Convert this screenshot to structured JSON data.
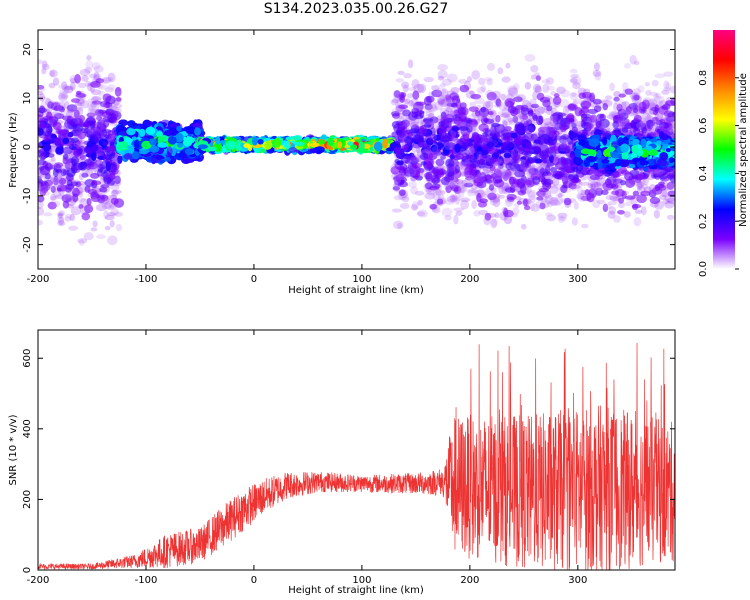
{
  "title": "S134.2023.035.00.26.G27",
  "chart_data": [
    {
      "type": "heatmap",
      "xlabel": "Height of straight line (km)",
      "ylabel": "Frequency (Hz)",
      "xlim": [
        -200,
        390
      ],
      "ylim": [
        -25,
        24
      ],
      "xticks": [
        -200,
        -100,
        0,
        100,
        200,
        300
      ],
      "yticks": [
        -20,
        -10,
        0,
        10,
        20
      ],
      "colorbar": {
        "label": "Normalized spectral amplitude",
        "range": [
          0,
          1
        ],
        "ticks": [
          "0.0",
          "0.2",
          "0.4",
          "0.6",
          "0.8"
        ],
        "colors": [
          "#ffffff",
          "#7a00ff",
          "#0000ff",
          "#00ffff",
          "#00ff00",
          "#ffff00",
          "#ff8800",
          "#ff0000",
          "#ff0080"
        ]
      },
      "features": [
        {
          "x_range": [
            -200,
            -125
          ],
          "freq_spread": 24,
          "center": 0
        },
        {
          "x_range": [
            -125,
            -50
          ],
          "freq_spread": 5,
          "center": 1
        },
        {
          "x_range": [
            -50,
            130
          ],
          "freq_spread": 1.5,
          "center": 0.5,
          "peak_amplitude": 0.9
        },
        {
          "x_range": [
            130,
            390
          ],
          "freq_spread": 20,
          "center": 0
        },
        {
          "x_range": [
            300,
            390
          ],
          "freq_spread": 4,
          "center": -1
        }
      ]
    },
    {
      "type": "line",
      "xlabel": "Height of straight line (km)",
      "ylabel": "SNR (10 * v/v)",
      "xlim": [
        -200,
        390
      ],
      "ylim": [
        0,
        680
      ],
      "xticks": [
        -200,
        -100,
        0,
        100,
        200,
        300
      ],
      "yticks": [
        0,
        200,
        400,
        600
      ],
      "color": "#ee3333",
      "envelope": [
        {
          "x": -200,
          "mean": 10,
          "spread": 8
        },
        {
          "x": -150,
          "mean": 10,
          "spread": 8
        },
        {
          "x": -110,
          "mean": 25,
          "spread": 20
        },
        {
          "x": -80,
          "mean": 55,
          "spread": 50
        },
        {
          "x": -50,
          "mean": 70,
          "spread": 50
        },
        {
          "x": -30,
          "mean": 120,
          "spread": 60
        },
        {
          "x": -10,
          "mean": 170,
          "spread": 60
        },
        {
          "x": 10,
          "mean": 210,
          "spread": 50
        },
        {
          "x": 30,
          "mean": 240,
          "spread": 40
        },
        {
          "x": 60,
          "mean": 250,
          "spread": 30
        },
        {
          "x": 100,
          "mean": 245,
          "spread": 25
        },
        {
          "x": 150,
          "mean": 245,
          "spread": 30
        },
        {
          "x": 175,
          "mean": 250,
          "spread": 40
        },
        {
          "x": 185,
          "mean": 240,
          "spread": 200
        },
        {
          "x": 250,
          "mean": 220,
          "spread": 220
        },
        {
          "x": 320,
          "mean": 230,
          "spread": 240
        },
        {
          "x": 390,
          "mean": 220,
          "spread": 200
        }
      ]
    }
  ]
}
